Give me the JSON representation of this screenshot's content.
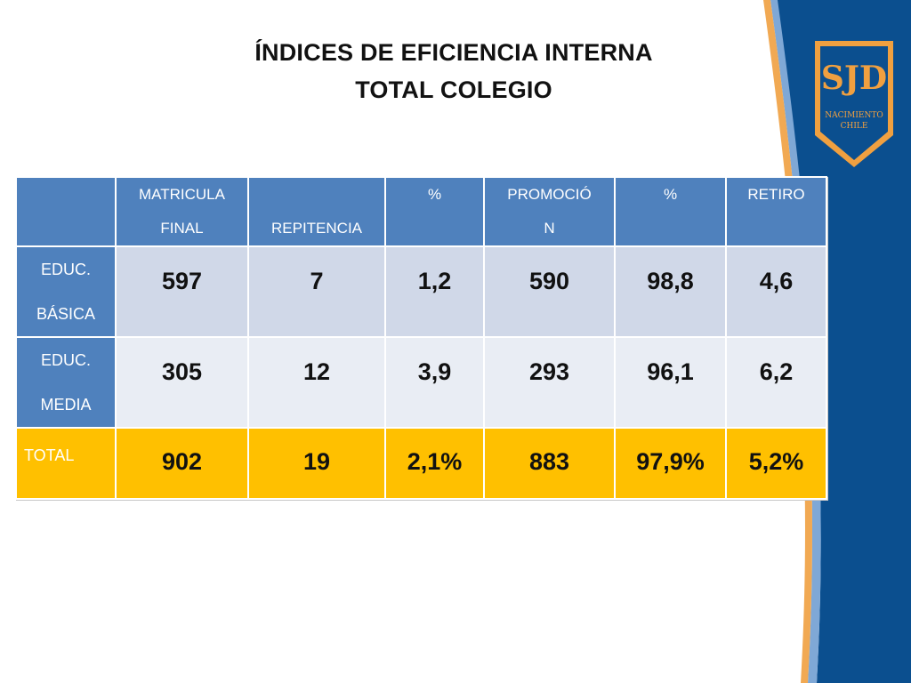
{
  "title": {
    "line1": "ÍNDICES DE EFICIENCIA INTERNA",
    "line2": "TOTAL COLEGIO"
  },
  "logo": {
    "text": "SJD",
    "subtitle_line1": "NACIMIENTO",
    "subtitle_line2": "CHILE"
  },
  "colors": {
    "header_blue": "#4f81bd",
    "row1": "#d0d8e8",
    "row2": "#e9edf4",
    "total_row": "#ffc000",
    "sidebar_navy": "#0b4f8f",
    "accent_orange": "#f0a040"
  },
  "table": {
    "headers": [
      {
        "line1": "",
        "line2": ""
      },
      {
        "line1": "MATRICULA",
        "line2": "FINAL"
      },
      {
        "line1": "",
        "line2": "REPITENCIA"
      },
      {
        "line1": "%",
        "line2": ""
      },
      {
        "line1": "PROMOCIÓ",
        "line2": "N"
      },
      {
        "line1": "%",
        "line2": ""
      },
      {
        "line1": "RETIRO",
        "line2": ""
      }
    ],
    "rows": [
      {
        "label_line1": "EDUC.",
        "label_line2": "BÁSICA",
        "values": [
          "597",
          "7",
          "1,2",
          "590",
          "98,8",
          "4,6"
        ]
      },
      {
        "label_line1": "EDUC.",
        "label_line2": "MEDIA",
        "values": [
          "305",
          "12",
          "3,9",
          "293",
          "96,1",
          "6,2"
        ]
      }
    ],
    "total": {
      "label": "TOTAL",
      "values": [
        "902",
        "19",
        "2,1%",
        "883",
        "97,9%",
        "5,2%"
      ]
    }
  }
}
